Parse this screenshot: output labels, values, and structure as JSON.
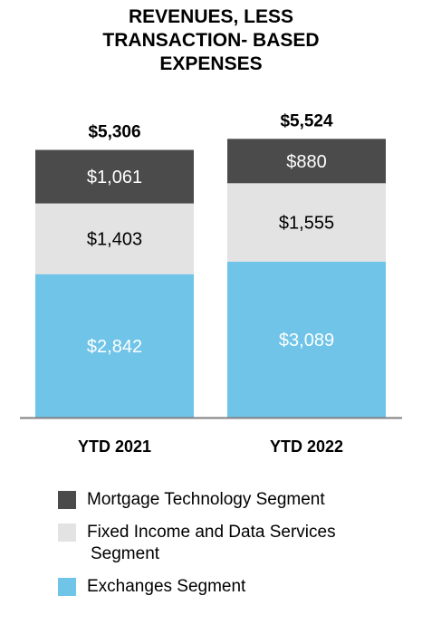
{
  "chart_data": {
    "type": "bar",
    "stacked": true,
    "title_lines": [
      "REVENUES, LESS",
      "TRANSACTION- BASED",
      "EXPENSES"
    ],
    "categories": [
      "YTD 2021",
      "YTD 2022"
    ],
    "totals": [
      5306,
      5524
    ],
    "total_labels": [
      "$5,306",
      "$5,524"
    ],
    "series": [
      {
        "name": "Exchanges Segment",
        "values": [
          2842,
          3089
        ],
        "labels": [
          "$2,842",
          "$3,089"
        ],
        "color": "#6fc4e8",
        "label_color": "#ffffff"
      },
      {
        "name": "Fixed Income and Data Services Segment",
        "values": [
          1403,
          1555
        ],
        "labels": [
          "$1,403",
          "$1,555"
        ],
        "color": "#e3e3e3",
        "label_color": "#000000"
      },
      {
        "name": "Mortgage Technology Segment",
        "values": [
          1061,
          880
        ],
        "labels": [
          "$1,061",
          "$880"
        ],
        "color": "#4b4b4b",
        "label_color": "#ffffff"
      }
    ],
    "legend_order": [
      2,
      1,
      0
    ],
    "legend_text": [
      [
        "Mortgage Technology Segment"
      ],
      [
        "Fixed Income and Data Services",
        "Segment"
      ],
      [
        "Exchanges Segment"
      ]
    ],
    "grid": false,
    "axis_color": "#808080"
  }
}
